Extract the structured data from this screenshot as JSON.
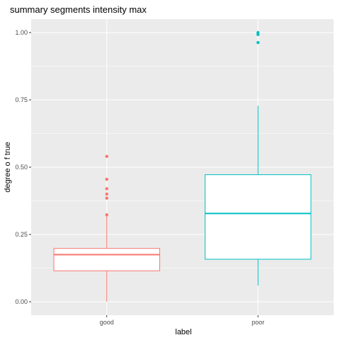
{
  "chart_data": {
    "type": "boxplot",
    "title": "summary segments intensity max",
    "xlabel": "label",
    "ylabel": "degree o f true",
    "ylim": [
      -0.05,
      1.05
    ],
    "y_ticks": [
      0.0,
      0.25,
      0.5,
      0.75,
      1.0
    ],
    "y_tick_labels": [
      "0.00",
      "0.25",
      "0.50",
      "0.75",
      "1.00"
    ],
    "categories": [
      "good",
      "poor"
    ],
    "grid": true,
    "background": "#ebebeb",
    "grid_color": "#ffffff",
    "legend": "none",
    "series": [
      {
        "category": "good",
        "color": "#f8766d",
        "whisker_low": 0.0,
        "q1": 0.115,
        "median": 0.175,
        "q3": 0.198,
        "whisker_high": 0.318,
        "outliers": [
          0.323,
          0.385,
          0.4,
          0.42,
          0.455,
          0.54
        ]
      },
      {
        "category": "poor",
        "color": "#00bfc4",
        "whisker_low": 0.06,
        "q1": 0.158,
        "median": 0.328,
        "q3": 0.472,
        "whisker_high": 0.728,
        "outliers": [
          0.963,
          0.993,
          1.0
        ]
      }
    ]
  }
}
